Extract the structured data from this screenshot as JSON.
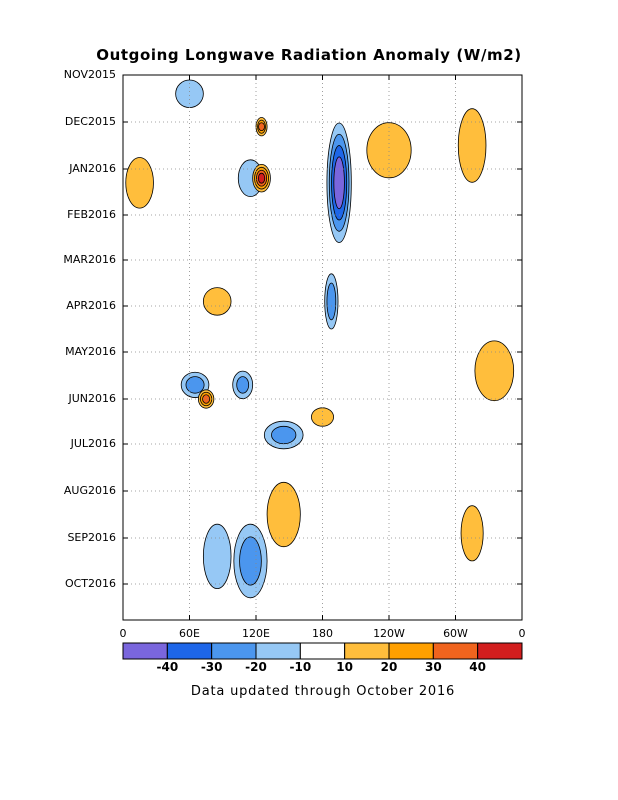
{
  "chart_data": {
    "type": "heatmap",
    "title": "Outgoing Longwave Radiation Anomaly (W/m2)",
    "subtitle": "Data updated through October 2016",
    "x_ticks": [
      "0",
      "60E",
      "120E",
      "180",
      "120W",
      "60W",
      "0"
    ],
    "x_tick_values": [
      0,
      60,
      120,
      180,
      240,
      300,
      360
    ],
    "y_ticks": [
      "NOV2015",
      "DEC2015",
      "JAN2016",
      "FEB2016",
      "MAR2016",
      "APR2016",
      "MAY2016",
      "JUN2016",
      "JUL2016",
      "AUG2016",
      "SEP2016",
      "OCT2016"
    ],
    "grid": true,
    "colorbar": {
      "levels": [
        "-40",
        "-30",
        "-20",
        "-10",
        "10",
        "20",
        "30",
        "40"
      ],
      "colors": [
        "#7a66dd",
        "#1e66e8",
        "#4b96ee",
        "#96c8f5",
        "#ffffff",
        "#ffbe3c",
        "#ffa000",
        "#f0641e",
        "#d21e1e"
      ]
    },
    "features": [
      {
        "lon": 195,
        "month": 2.3,
        "lon_width": 22,
        "month_height": 2.6,
        "value": -48
      },
      {
        "lon": 188,
        "month": 4.9,
        "lon_width": 12,
        "month_height": 1.2,
        "value": -25
      },
      {
        "lon": 65,
        "month": 6.7,
        "lon_width": 25,
        "month_height": 0.55,
        "value": -24
      },
      {
        "lon": 108,
        "month": 6.7,
        "lon_width": 18,
        "month_height": 0.6,
        "value": -20
      },
      {
        "lon": 145,
        "month": 7.8,
        "lon_width": 35,
        "month_height": 0.6,
        "value": -22
      },
      {
        "lon": 115,
        "month": 10.5,
        "lon_width": 30,
        "month_height": 1.6,
        "value": -24
      },
      {
        "lon": 85,
        "month": 10.4,
        "lon_width": 25,
        "month_height": 1.4,
        "value": -18
      },
      {
        "lon": 60,
        "month": 0.4,
        "lon_width": 25,
        "month_height": 0.6,
        "value": -15
      },
      {
        "lon": 115,
        "month": 2.2,
        "lon_width": 22,
        "month_height": 0.8,
        "value": -14
      },
      {
        "lon": 125,
        "month": 2.2,
        "lon_width": 16,
        "month_height": 0.6,
        "value": 42
      },
      {
        "lon": 125,
        "month": 1.1,
        "lon_width": 10,
        "month_height": 0.4,
        "value": 30
      },
      {
        "lon": 75,
        "month": 7.0,
        "lon_width": 14,
        "month_height": 0.4,
        "value": 32
      },
      {
        "lon": 15,
        "month": 2.3,
        "lon_width": 25,
        "month_height": 1.1,
        "value": 14
      },
      {
        "lon": 315,
        "month": 1.5,
        "lon_width": 25,
        "month_height": 1.6,
        "value": 15
      },
      {
        "lon": 335,
        "month": 6.4,
        "lon_width": 35,
        "month_height": 1.3,
        "value": 14
      },
      {
        "lon": 145,
        "month": 9.5,
        "lon_width": 30,
        "month_height": 1.4,
        "value": 14
      },
      {
        "lon": 315,
        "month": 9.9,
        "lon_width": 20,
        "month_height": 1.2,
        "value": 12
      },
      {
        "lon": 240,
        "month": 1.6,
        "lon_width": 40,
        "month_height": 1.2,
        "value": 12
      },
      {
        "lon": 85,
        "month": 4.9,
        "lon_width": 25,
        "month_height": 0.6,
        "value": 14
      },
      {
        "lon": 180,
        "month": 7.4,
        "lon_width": 20,
        "month_height": 0.4,
        "value": 14
      }
    ]
  }
}
